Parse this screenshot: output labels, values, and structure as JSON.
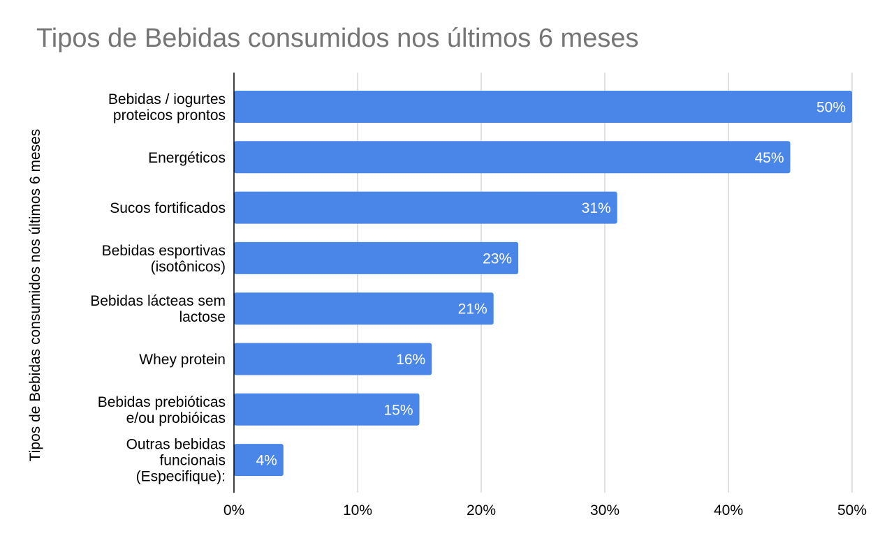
{
  "chart_data": {
    "type": "bar",
    "orientation": "horizontal",
    "title": "Tipos de Bebidas consumidos nos últimos 6 meses",
    "ylabel": "Tipos de Bebidas consumidos nos últimos 6 meses",
    "xlabel": "",
    "categories": [
      [
        "Bebidas / iogurtes",
        "proteicos prontos"
      ],
      [
        "Energéticos"
      ],
      [
        "Sucos fortificados"
      ],
      [
        "Bebidas esportivas",
        "(isotônicos)"
      ],
      [
        "Bebidas lácteas sem",
        "lactose"
      ],
      [
        "Whey protein"
      ],
      [
        "Bebidas prebióticas",
        "e/ou probióicas"
      ],
      [
        "Outras bebidas",
        "funcionais",
        "(Especifique):"
      ]
    ],
    "values": [
      50,
      45,
      31,
      23,
      21,
      16,
      15,
      4
    ],
    "data_labels": [
      "50%",
      "45%",
      "31%",
      "23%",
      "21%",
      "16%",
      "15%",
      "4%"
    ],
    "xlim": [
      0,
      50
    ],
    "xticks": [
      0,
      10,
      20,
      30,
      40,
      50
    ],
    "xtick_labels": [
      "0%",
      "10%",
      "20%",
      "30%",
      "40%",
      "50%"
    ],
    "grid": true,
    "legend": "none",
    "colors": {
      "bar": "#4a86e8",
      "grid": "#cccccc",
      "title": "#757575",
      "text": "#000000",
      "data_label": "#ffffff"
    }
  }
}
